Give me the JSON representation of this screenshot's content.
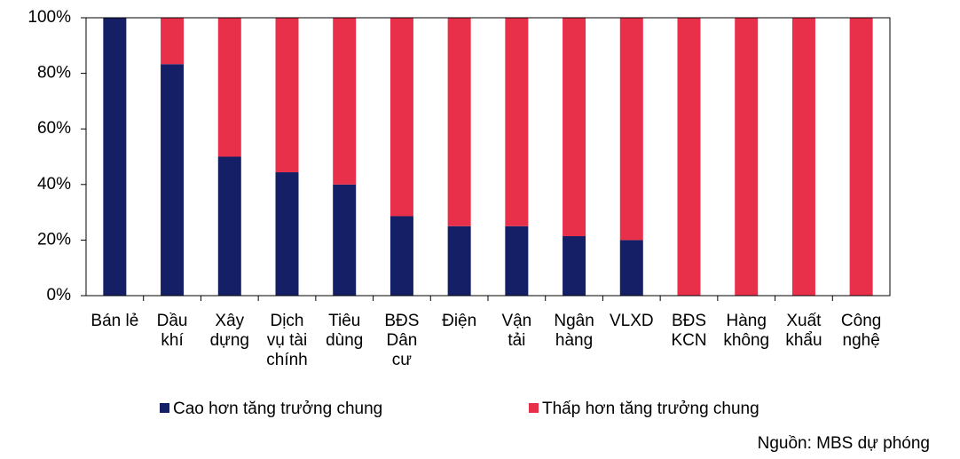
{
  "chart_data": {
    "type": "stacked_bar",
    "categories": [
      [
        "Bán lẻ"
      ],
      [
        "Dầu",
        "khí"
      ],
      [
        "Xây",
        "dựng"
      ],
      [
        "Dịch",
        "vụ tài",
        "chính"
      ],
      [
        "Tiêu",
        "dùng"
      ],
      [
        "BĐS",
        "Dân",
        "cư"
      ],
      [
        "Điện"
      ],
      [
        "Vận",
        "tải"
      ],
      [
        "Ngân",
        "hàng"
      ],
      [
        "VLXD"
      ],
      [
        "BĐS",
        "KCN"
      ],
      [
        "Hàng",
        "không"
      ],
      [
        "Xuất",
        "khẩu"
      ],
      [
        "Công",
        "nghệ"
      ]
    ],
    "series": [
      {
        "name": "Cao hơn tăng trưởng chung",
        "color": "#141f66",
        "values": [
          100,
          83.3,
          50,
          44.4,
          40,
          28.6,
          25,
          25,
          21.4,
          20,
          0,
          0,
          0,
          0
        ]
      },
      {
        "name": "Thấp hơn tăng trưởng chung",
        "color": "#e8304a",
        "values": [
          0,
          16.7,
          50,
          55.6,
          60,
          71.4,
          75,
          75,
          78.6,
          80,
          100,
          100,
          100,
          100
        ]
      }
    ],
    "ylim": [
      0,
      100
    ],
    "yticks": [
      {
        "value": 0,
        "label": "0%"
      },
      {
        "value": 20,
        "label": "20%"
      },
      {
        "value": 40,
        "label": "40%"
      },
      {
        "value": 60,
        "label": "60%"
      },
      {
        "value": 80,
        "label": "80%"
      },
      {
        "value": 100,
        "label": "100%"
      }
    ],
    "legend": "bottom",
    "source": "Nguồn: MBS dự phóng"
  }
}
